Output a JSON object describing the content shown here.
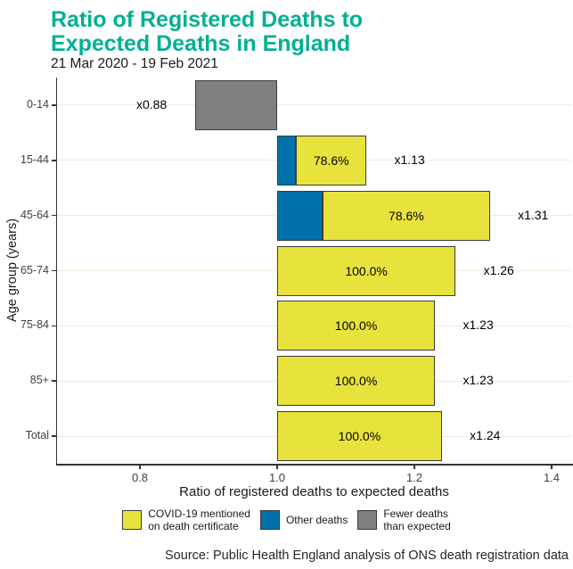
{
  "title_line1": "Ratio of Registered Deaths to",
  "title_line2": "Expected Deaths in England",
  "subtitle": "21 Mar 2020 - 19 Feb 2021",
  "source": "Source: Public Health England analysis of ONS death registration data",
  "colors": {
    "title": "#00b092",
    "covid_yellow": "#e8e33c",
    "other_blue": "#0071a9",
    "fewer_gray": "#7f7f7f",
    "bar_border": "#3c3c3c",
    "gridline": "#f0ead8",
    "axis": "#333333",
    "tick_text": "#404040"
  },
  "chart_data": {
    "type": "bar",
    "orientation": "horizontal-stacked",
    "xlabel": "Ratio of registered deaths to expected deaths",
    "ylabel": "Age group (years)",
    "xlim": [
      0.68,
      1.43
    ],
    "baseline": 1.0,
    "x_ticks": [
      0.8,
      1.0,
      1.2,
      1.4
    ],
    "x_tick_labels": [
      "0.8",
      "1.0",
      "1.2",
      "1.4"
    ],
    "grid": "horizontal-only",
    "legend_position": "bottom",
    "rows": [
      {
        "age_group": "0-14",
        "ratio": 0.88,
        "ratio_label": "x0.88",
        "covid_pct": null,
        "pct_label": "",
        "type": "fewer"
      },
      {
        "age_group": "15-44",
        "ratio": 1.13,
        "ratio_label": "x1.13",
        "covid_pct": 78.6,
        "pct_label": "78.6%",
        "type": "excess"
      },
      {
        "age_group": "45-64",
        "ratio": 1.31,
        "ratio_label": "x1.31",
        "covid_pct": 78.6,
        "pct_label": "78.6%",
        "type": "excess"
      },
      {
        "age_group": "65-74",
        "ratio": 1.26,
        "ratio_label": "x1.26",
        "covid_pct": 100.0,
        "pct_label": "100.0%",
        "type": "excess"
      },
      {
        "age_group": "75-84",
        "ratio": 1.23,
        "ratio_label": "x1.23",
        "covid_pct": 100.0,
        "pct_label": "100.0%",
        "type": "excess"
      },
      {
        "age_group": "85+",
        "ratio": 1.23,
        "ratio_label": "x1.23",
        "covid_pct": 100.0,
        "pct_label": "100.0%",
        "type": "excess"
      },
      {
        "age_group": "Total",
        "ratio": 1.24,
        "ratio_label": "x1.24",
        "covid_pct": 100.0,
        "pct_label": "100.0%",
        "type": "excess"
      }
    ],
    "legend": [
      {
        "label_line1": "COVID-19 mentioned",
        "label_line2": "on death certificate",
        "color_key": "covid_yellow"
      },
      {
        "label_line1": "Other deaths",
        "label_line2": "",
        "color_key": "other_blue"
      },
      {
        "label_line1": "Fewer deaths",
        "label_line2": "than expected",
        "color_key": "fewer_gray"
      }
    ]
  }
}
